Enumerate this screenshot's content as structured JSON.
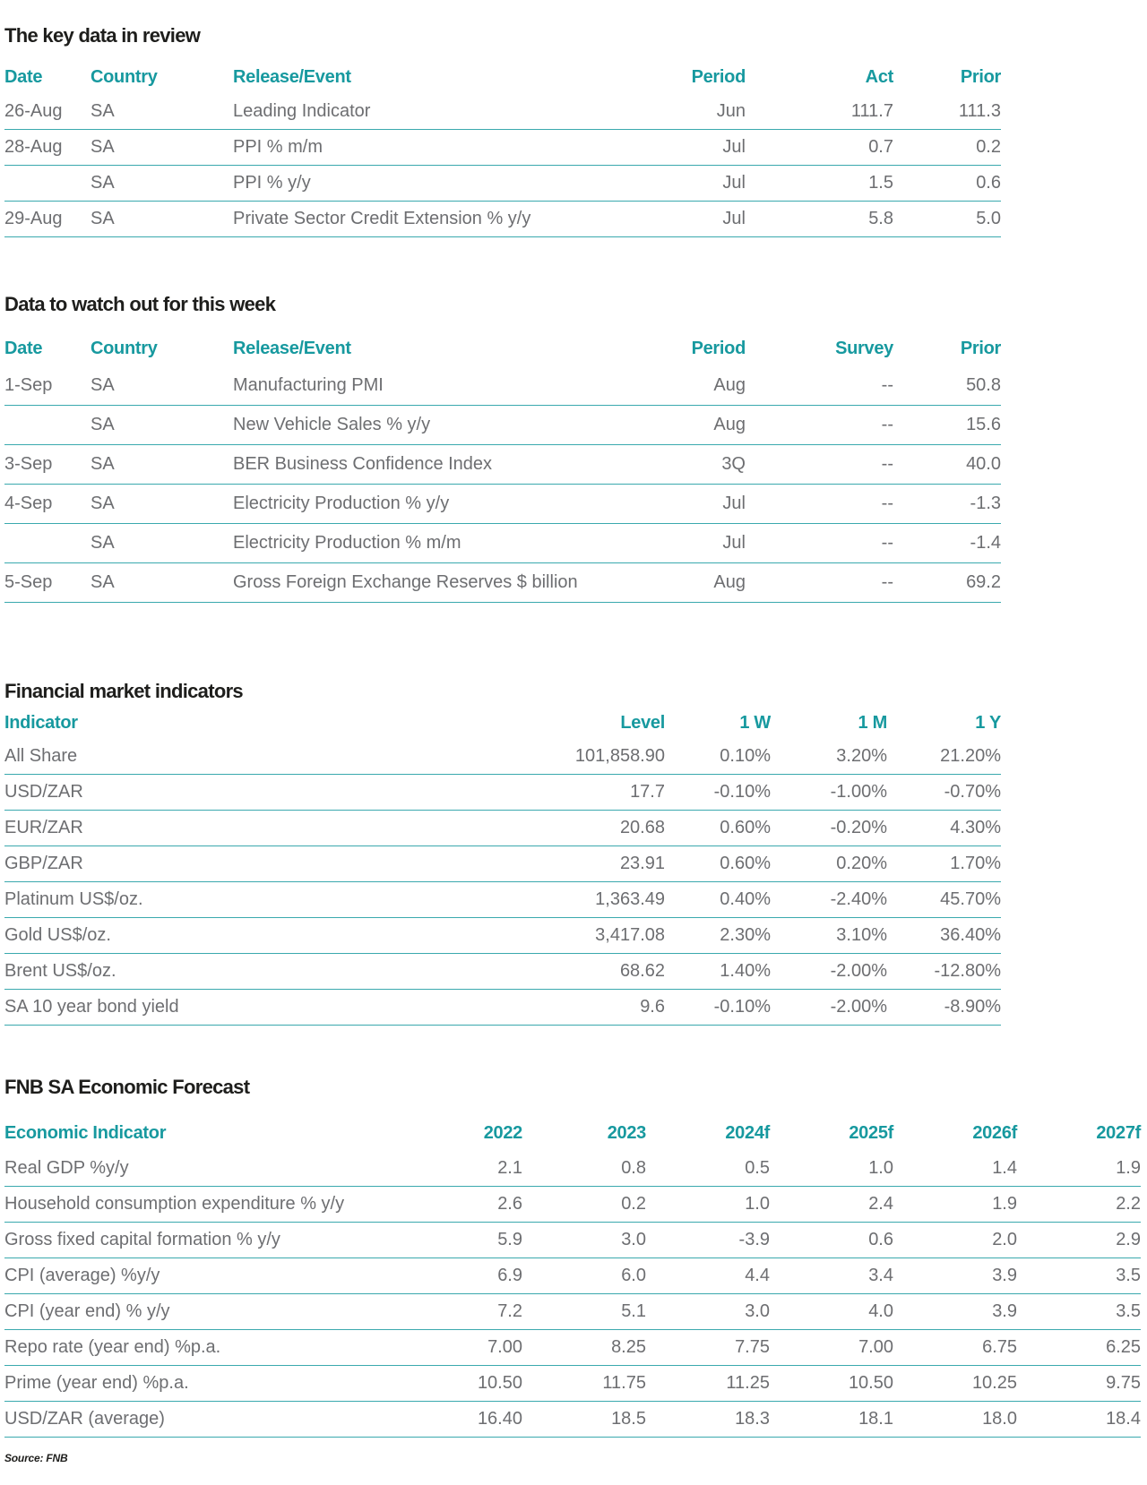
{
  "source_note": "Source: FNB",
  "colors": {
    "teal_header": "#17999F",
    "divider_line": "#3AA9AE",
    "body_text": "#6D6E71",
    "title_text": "#1E1E1C"
  },
  "tables": [
    {
      "title": "The key data in review",
      "columns": [
        {
          "label": "Date",
          "align": "l"
        },
        {
          "label": "Country",
          "align": "l"
        },
        {
          "label": "Release/Event",
          "align": "l"
        },
        {
          "label": "Period",
          "align": "r"
        },
        {
          "label": "Act",
          "align": "r"
        },
        {
          "label": "Prior",
          "align": "r"
        }
      ],
      "rows": [
        [
          "26-Aug",
          "SA",
          "Leading Indicator",
          "Jun",
          "111.7",
          "111.3"
        ],
        [
          "28-Aug",
          "SA",
          "PPI % m/m",
          "Jul",
          "0.7",
          "0.2"
        ],
        [
          "",
          "SA",
          "PPI % y/y",
          "Jul",
          "1.5",
          "0.6"
        ],
        [
          "29-Aug",
          "SA",
          "Private Sector Credit Extension % y/y",
          "Jul",
          "5.8",
          "5.0"
        ]
      ]
    },
    {
      "title": "Data to watch out for this week",
      "columns": [
        {
          "label": "Date",
          "align": "l"
        },
        {
          "label": "Country",
          "align": "l"
        },
        {
          "label": "Release/Event",
          "align": "l"
        },
        {
          "label": "Period",
          "align": "r"
        },
        {
          "label": "Survey",
          "align": "r"
        },
        {
          "label": "Prior",
          "align": "r"
        }
      ],
      "rows": [
        [
          "1-Sep",
          "SA",
          "Manufacturing PMI",
          "Aug",
          "--",
          "50.8"
        ],
        [
          "",
          "SA",
          "New Vehicle Sales % y/y",
          "Aug",
          "--",
          "15.6"
        ],
        [
          "3-Sep",
          "SA",
          "BER Business Confidence Index",
          "3Q",
          "--",
          "40.0"
        ],
        [
          "4-Sep",
          "SA",
          "Electricity Production % y/y",
          "Jul",
          "--",
          "-1.3"
        ],
        [
          "",
          "SA",
          "Electricity Production % m/m",
          "Jul",
          "--",
          "-1.4"
        ],
        [
          "5-Sep",
          "SA",
          "Gross Foreign Exchange Reserves $ billion",
          "Aug",
          "--",
          "69.2"
        ]
      ]
    },
    {
      "title": "Financial market indicators",
      "columns": [
        {
          "label": "Indicator",
          "align": "l"
        },
        {
          "label": "Level",
          "align": "r"
        },
        {
          "label": "1 W",
          "align": "r"
        },
        {
          "label": "1 M",
          "align": "r"
        },
        {
          "label": "1 Y",
          "align": "r"
        }
      ],
      "rows": [
        [
          "All Share",
          "101,858.90",
          "0.10%",
          "3.20%",
          "21.20%"
        ],
        [
          "USD/ZAR",
          "17.7",
          "-0.10%",
          "-1.00%",
          "-0.70%"
        ],
        [
          "EUR/ZAR",
          "20.68",
          "0.60%",
          "-0.20%",
          "4.30%"
        ],
        [
          "GBP/ZAR",
          "23.91",
          "0.60%",
          "0.20%",
          "1.70%"
        ],
        [
          "Platinum US$/oz.",
          "1,363.49",
          "0.40%",
          "-2.40%",
          "45.70%"
        ],
        [
          "Gold US$/oz.",
          "3,417.08",
          "2.30%",
          "3.10%",
          "36.40%"
        ],
        [
          "Brent US$/oz.",
          "68.62",
          "1.40%",
          "-2.00%",
          "-12.80%"
        ],
        [
          "SA 10 year bond yield",
          "9.6",
          "-0.10%",
          "-2.00%",
          "-8.90%"
        ]
      ]
    },
    {
      "title": "FNB SA Economic Forecast",
      "columns": [
        {
          "label": "Economic Indicator",
          "align": "l"
        },
        {
          "label": "2022",
          "align": "r"
        },
        {
          "label": "2023",
          "align": "r"
        },
        {
          "label": "2024f",
          "align": "r"
        },
        {
          "label": "2025f",
          "align": "r"
        },
        {
          "label": "2026f",
          "align": "r"
        },
        {
          "label": "2027f",
          "align": "r"
        }
      ],
      "rows": [
        [
          "Real GDP %y/y",
          "2.1",
          "0.8",
          "0.5",
          "1.0",
          "1.4",
          "1.9"
        ],
        [
          "Household consumption expenditure % y/y",
          "2.6",
          "0.2",
          "1.0",
          "2.4",
          "1.9",
          "2.2"
        ],
        [
          "Gross fixed capital formation % y/y",
          "5.9",
          "3.0",
          "-3.9",
          "0.6",
          "2.0",
          "2.9"
        ],
        [
          "CPI (average) %y/y",
          "6.9",
          "6.0",
          "4.4",
          "3.4",
          "3.9",
          "3.5"
        ],
        [
          "CPI (year end) % y/y",
          "7.2",
          "5.1",
          "3.0",
          "4.0",
          "3.9",
          "3.5"
        ],
        [
          "Repo rate (year end) %p.a.",
          "7.00",
          "8.25",
          "7.75",
          "7.00",
          "6.75",
          "6.25"
        ],
        [
          "Prime (year end) %p.a.",
          "10.50",
          "11.75",
          "11.25",
          "10.50",
          "10.25",
          "9.75"
        ],
        [
          "USD/ZAR (average)",
          "16.40",
          "18.5",
          "18.3",
          "18.1",
          "18.0",
          "18.4"
        ]
      ]
    }
  ]
}
